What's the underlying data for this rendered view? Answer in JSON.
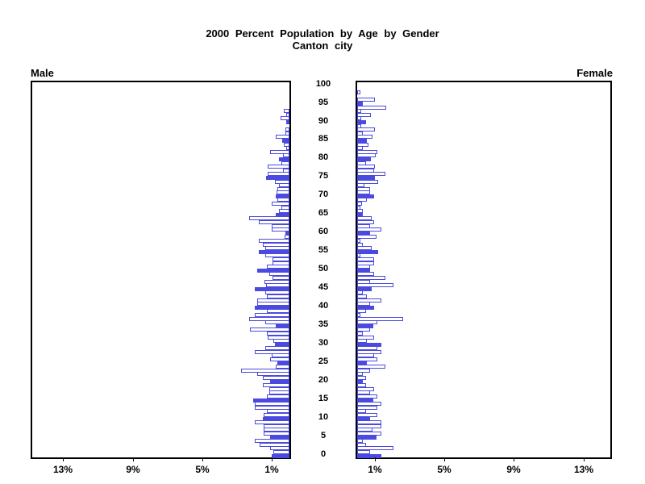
{
  "title": {
    "line1": "2000 Percent Population by Age by Gender",
    "line2": "Canton city"
  },
  "panel_labels": {
    "male": "Male",
    "female": "Female"
  },
  "chart_data": {
    "type": "bar",
    "subtype": "population-pyramid",
    "title": "2000 Percent Population by Age by Gender",
    "subtitle": "Canton city",
    "age_axis": {
      "min": 0,
      "max": 100,
      "tick_step": 5,
      "tick_labels": [
        "0",
        "5",
        "10",
        "15",
        "20",
        "25",
        "30",
        "35",
        "40",
        "45",
        "50",
        "55",
        "60",
        "65",
        "70",
        "75",
        "80",
        "85",
        "90",
        "95",
        "100"
      ]
    },
    "percent_axis": {
      "ticks_percent": [
        1,
        5,
        9,
        13
      ],
      "male_tick_labels_left_to_right": [
        "13%",
        "9%",
        "5%",
        "1%"
      ],
      "female_tick_labels_left_to_right": [
        "1%",
        "5%",
        "9%",
        "13%"
      ],
      "max_percent": 15
    },
    "highlight_every": 5,
    "legend": "solid bars at ages divisible by 5, hollow bars otherwise",
    "series": [
      {
        "name": "Male",
        "unit": "percent of population",
        "ages": "index equals age 0..100",
        "values": [
          1.0,
          0.93,
          1.09,
          1.7,
          2.0,
          1.09,
          1.47,
          1.47,
          1.47,
          2.0,
          1.55,
          1.47,
          1.3,
          2.0,
          2.0,
          2.09,
          1.3,
          1.16,
          1.16,
          1.52,
          1.09,
          1.52,
          1.83,
          2.76,
          0.8,
          0.7,
          1.1,
          1.0,
          2.0,
          1.4,
          0.85,
          0.93,
          1.25,
          1.3,
          2.25,
          0.78,
          1.4,
          2.3,
          2.0,
          1.3,
          2.0,
          1.86,
          1.86,
          1.3,
          1.4,
          2.0,
          1.35,
          1.45,
          0.95,
          1.15,
          1.85,
          1.3,
          0.95,
          0.95,
          1.4,
          1.78,
          1.4,
          1.55,
          1.78,
          0.28,
          0.23,
          1.0,
          1.0,
          1.78,
          2.33,
          0.78,
          0.62,
          0.47,
          1.0,
          0.7,
          0.78,
          0.72,
          0.7,
          0.62,
          0.85,
          1.32,
          1.24,
          0.39,
          1.27,
          0.47,
          0.59,
          0.39,
          1.12,
          0.19,
          0.31,
          0.43,
          0.78,
          0.23,
          0.23,
          0.0,
          0.2,
          0.5,
          0.19,
          0.34,
          0.0,
          0.0,
          0.0,
          0.0,
          0.0,
          0.0,
          0.0
        ]
      },
      {
        "name": "Female",
        "unit": "percent of population",
        "ages": "index equals age 0..100",
        "values": [
          1.4,
          0.76,
          2.1,
          0.5,
          0.33,
          1.13,
          1.38,
          0.87,
          1.38,
          1.38,
          0.76,
          1.18,
          0.5,
          1.18,
          1.38,
          0.92,
          1.18,
          0.76,
          0.95,
          0.5,
          0.33,
          0.5,
          0.33,
          0.76,
          1.64,
          0.56,
          1.18,
          0.95,
          1.4,
          1.18,
          1.4,
          0.56,
          0.95,
          0.33,
          0.76,
          0.92,
          1.18,
          2.62,
          0.2,
          0.5,
          0.98,
          0.76,
          1.4,
          0.56,
          0.33,
          0.82,
          2.1,
          0.76,
          1.64,
          0.95,
          0.76,
          0.76,
          0.95,
          0.95,
          0.17,
          1.22,
          0.82,
          0.33,
          0.17,
          1.13,
          0.76,
          1.4,
          0.76,
          0.98,
          0.82,
          0.33,
          0.33,
          0.2,
          0.3,
          0.56,
          0.98,
          0.76,
          0.76,
          0.4,
          1.22,
          1.0,
          1.64,
          0.95,
          1.0,
          0.5,
          0.79,
          1.07,
          1.18,
          0.33,
          0.67,
          0.56,
          0.9,
          0.33,
          1.0,
          0.25,
          0.5,
          0.25,
          0.78,
          0.25,
          1.65,
          0.33,
          1.0,
          0.0,
          0.2,
          0.0,
          0.0
        ]
      }
    ],
    "colors": {
      "bar_fill": "#4a4ae0",
      "bar_border": "#4a4ae0",
      "frame": "#000000",
      "text": "#000000",
      "background": "#ffffff"
    }
  }
}
